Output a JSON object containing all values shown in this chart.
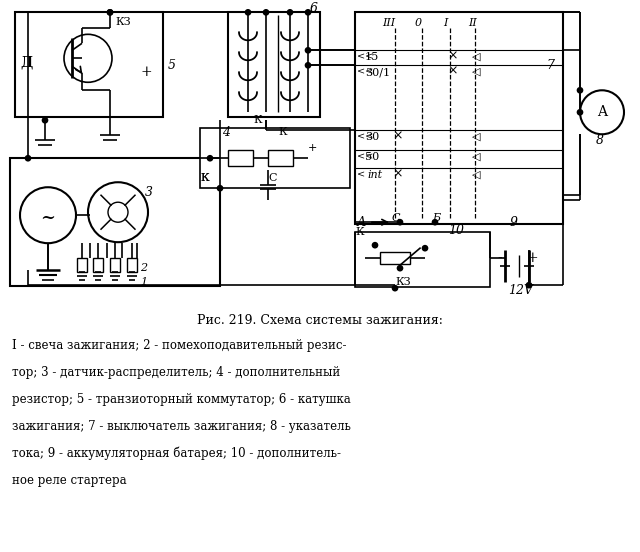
{
  "bg_color": "#ffffff",
  "lc": "#000000",
  "title_line": "Рис. 219. Схема системы зажигания:",
  "caption_lines": [
    "I - свеча зажигания; 2 - помехоподавительный резис-",
    "тор; 3 - датчик-распределитель; 4 - дополнительный",
    "резистор; 5 - транзиоторный коммутатор; 6 - катушка",
    "зажигания; 7 - выключатель зажигания; 8 - указатель",
    "тока; 9 - аккумуляторная батарея; 10 - дополнитель-",
    "ное реле стартера"
  ],
  "fig_width": 6.4,
  "fig_height": 5.52,
  "dpi": 100
}
